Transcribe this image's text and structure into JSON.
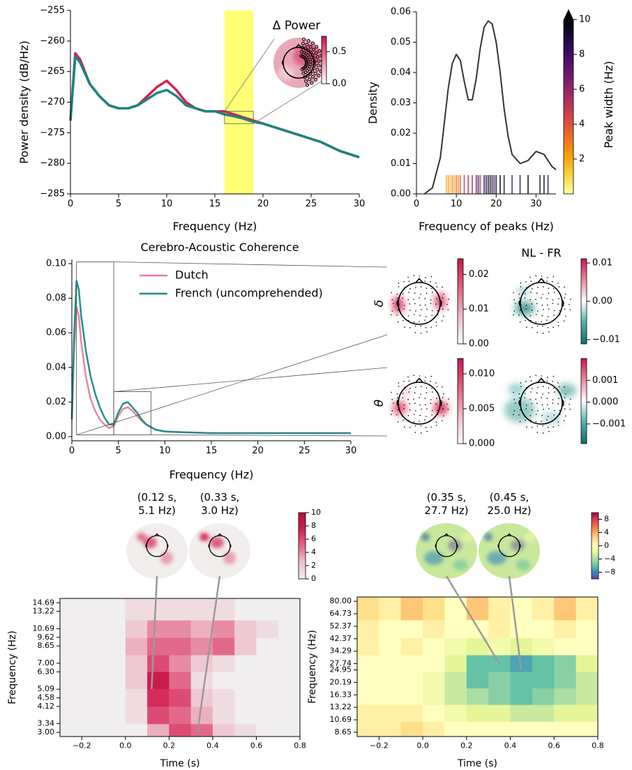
{
  "chart_data": [
    {
      "type": "line",
      "xlabel": "Frequency (Hz)",
      "ylabel": "Power density (dB/Hz)",
      "xlim": [
        0,
        30
      ],
      "ylim": [
        -285,
        -255
      ],
      "xticks": [
        0,
        5,
        10,
        15,
        20,
        25,
        30
      ],
      "yticks": [
        {
          "value": -285,
          "label": "−285"
        },
        {
          "value": -280,
          "label": "−280"
        },
        {
          "value": -275,
          "label": "−275"
        },
        {
          "value": -270,
          "label": "−270"
        },
        {
          "value": -265,
          "label": "−265"
        },
        {
          "value": -260,
          "label": "−260"
        },
        {
          "value": -255,
          "label": "−255"
        }
      ],
      "x": [
        0,
        0.5,
        1,
        2,
        3,
        4,
        5,
        6,
        7,
        8,
        9,
        10,
        11,
        12,
        13,
        14,
        15,
        16,
        17,
        18,
        19,
        20,
        22,
        24,
        26,
        28,
        30
      ],
      "series": [
        {
          "color": "#d6204e",
          "values": [
            -273,
            -262,
            -263,
            -267,
            -269,
            -270.5,
            -271,
            -271,
            -270.5,
            -269,
            -267.5,
            -266.5,
            -268,
            -270,
            -271,
            -271.5,
            -271.5,
            -271.5,
            -272,
            -272.5,
            -273,
            -273.5,
            -274.5,
            -275.5,
            -276.5,
            -278,
            -279
          ]
        },
        {
          "color": "#1a8580",
          "values": [
            -273,
            -262.5,
            -263.5,
            -267,
            -269,
            -270.5,
            -271,
            -271,
            -270.5,
            -269.5,
            -268.5,
            -268,
            -269,
            -270.5,
            -271,
            -271.5,
            -271.5,
            -272,
            -272.3,
            -272.7,
            -273.2,
            -273.5,
            -274.5,
            -275.5,
            -276.5,
            -278,
            -279
          ]
        }
      ],
      "highlight": [
        16,
        19
      ],
      "inset_region": {
        "xlim": [
          16,
          19
        ],
        "ylim": [
          -273.5,
          -271.5
        ]
      },
      "annotation": "Δ Power",
      "inset_colorbar": {
        "lim": [
          0,
          0.74
        ],
        "ticks": [
          {
            "value": 0,
            "label": "0.0"
          },
          0.5
        ]
      }
    },
    {
      "type": "density",
      "xlabel": "Frequency of peaks (Hz)",
      "ylabel": "Density",
      "xlim": [
        0,
        35
      ],
      "ylim": [
        0,
        0.06
      ],
      "xticks": [
        0,
        10,
        20,
        30
      ],
      "yticks": [
        {
          "value": 0,
          "label": "0.00"
        },
        0.01,
        0.02,
        0.03,
        0.04,
        0.05,
        0.06
      ],
      "x": [
        2,
        4,
        6,
        8,
        9,
        10,
        11,
        12,
        13,
        14,
        15,
        16,
        17,
        18,
        19,
        20,
        21,
        22,
        23,
        24,
        26,
        28,
        30,
        32,
        34,
        35
      ],
      "values": [
        0,
        0.002,
        0.012,
        0.035,
        0.043,
        0.046,
        0.044,
        0.037,
        0.031,
        0.031,
        0.038,
        0.048,
        0.055,
        0.057,
        0.056,
        0.05,
        0.04,
        0.028,
        0.019,
        0.013,
        0.01,
        0.011,
        0.014,
        0.013,
        0.009,
        0.008
      ],
      "color": "#333333",
      "rug": {
        "x": [
          7.5,
          8,
          8.5,
          9,
          9.5,
          10,
          10.5,
          11,
          12,
          13,
          14,
          15,
          15.5,
          16,
          17,
          17.5,
          18,
          18.5,
          19,
          19.5,
          20,
          21,
          22,
          24,
          26,
          28,
          31,
          32,
          33
        ],
        "widths": [
          2,
          2.5,
          1.5,
          3,
          2,
          3.5,
          2.5,
          4,
          5,
          6,
          5.5,
          7,
          8,
          6,
          9,
          8.5,
          9.5,
          10,
          9,
          8,
          9.5,
          10,
          9,
          8,
          9,
          10,
          9.5,
          10,
          9
        ]
      },
      "colorbar": {
        "label": "Peak width (Hz)",
        "lim": [
          0,
          10
        ],
        "ticks": [
          2,
          4,
          6,
          8,
          10
        ]
      }
    },
    {
      "type": "line",
      "title": "Cerebro-Acoustic Coherence",
      "xlabel": "Frequency (Hz)",
      "xlim": [
        0,
        30
      ],
      "ylim": [
        0,
        0.1
      ],
      "xticks": [
        0,
        5,
        10,
        15,
        20,
        25,
        30
      ],
      "yticks": [
        {
          "value": 0,
          "label": "0.00"
        },
        0.02,
        0.04,
        0.06,
        0.08,
        {
          "value": 0.1,
          "label": "0.10"
        }
      ],
      "x": [
        0,
        0.25,
        0.5,
        0.75,
        1,
        1.5,
        2,
        2.5,
        3,
        3.5,
        4,
        4.5,
        5,
        5.5,
        6,
        6.5,
        7,
        7.5,
        8,
        9,
        10,
        12,
        15,
        20,
        25,
        30
      ],
      "series": [
        {
          "name": "Dutch",
          "color": "#e8809a",
          "values": [
            0.01,
            0.05,
            0.075,
            0.07,
            0.055,
            0.035,
            0.022,
            0.015,
            0.01,
            0.007,
            0.005,
            0.006,
            0.012,
            0.016,
            0.017,
            0.015,
            0.012,
            0.009,
            0.007,
            0.004,
            0.003,
            0.0025,
            0.002,
            0.002,
            0.002,
            0.002
          ]
        },
        {
          "name": "French (uncomprehended)",
          "color": "#1a8a85",
          "values": [
            0.01,
            0.06,
            0.09,
            0.085,
            0.07,
            0.05,
            0.035,
            0.025,
            0.017,
            0.011,
            0.007,
            0.007,
            0.014,
            0.019,
            0.02,
            0.017,
            0.014,
            0.01,
            0.007,
            0.004,
            0.003,
            0.0025,
            0.002,
            0.002,
            0.002,
            0.002
          ]
        }
      ],
      "zoom_boxes": [
        {
          "xlim": [
            0.5,
            4.5
          ],
          "ylim": [
            0.001,
            0.101
          ]
        },
        {
          "xlim": [
            4.5,
            8.5
          ],
          "ylim": [
            0.001,
            0.026
          ]
        }
      ]
    },
    {
      "type": "topomap",
      "title": "NL - FR",
      "rows": [
        "δ",
        "θ"
      ],
      "colorbars": [
        {
          "lim": [
            0,
            0.0245
          ],
          "ticks": [
            {
              "value": 0,
              "label": "0.00"
            },
            0.01,
            0.02
          ]
        },
        {
          "lim": [
            -0.0111,
            0.0111
          ],
          "ticks": [
            {
              "value": -0.01,
              "label": "−0.01"
            },
            {
              "value": 0,
              "label": "0.00"
            },
            0.01
          ]
        },
        {
          "lim": [
            0,
            0.0122
          ],
          "ticks": [
            {
              "value": 0,
              "label": "0.000"
            },
            0.005,
            {
              "value": 0.01,
              "label": "0.010"
            }
          ]
        },
        {
          "lim": [
            -0.0019,
            0.002
          ],
          "ticks": [
            {
              "value": -0.001,
              "label": "−0.001"
            },
            {
              "value": 0,
              "label": "0.000"
            },
            0.001
          ]
        }
      ]
    },
    {
      "type": "heatmap",
      "xlabel": "Time (s)",
      "ylabel": "Frequency (Hz)",
      "log_y": true,
      "xlim": [
        -0.3,
        0.8
      ],
      "ylim": [
        2.85,
        15.5
      ],
      "xticks": [
        {
          "value": -0.2,
          "label": "−0.2"
        },
        {
          "value": 0,
          "label": "0.0"
        },
        0.2,
        0.4,
        0.6,
        0.8
      ],
      "yticks": [
        {
          "value": 3,
          "label": "3.00"
        },
        3.34,
        4.12,
        4.58,
        5.09,
        {
          "value": 6.3,
          "label": "6.30"
        },
        {
          "value": 7,
          "label": "7.00"
        },
        8.65,
        9.62,
        10.69,
        13.22,
        14.69
      ],
      "times": [
        -0.25,
        -0.15,
        -0.05,
        0.05,
        0.15,
        0.25,
        0.35,
        0.45,
        0.55,
        0.65,
        0.75
      ],
      "freqs": [
        3.0,
        3.7,
        4.6,
        5.7,
        7.0,
        8.6,
        10.7,
        13.2
      ],
      "z": [
        [
          0,
          0,
          0,
          0,
          3,
          6,
          5,
          2,
          1,
          0,
          0
        ],
        [
          0,
          0,
          0,
          1,
          6,
          5,
          3,
          1,
          0,
          0,
          0
        ],
        [
          0,
          0,
          0,
          1,
          7,
          6,
          2,
          1,
          0,
          0,
          0
        ],
        [
          0,
          0,
          0,
          2,
          8,
          5,
          1,
          0,
          0,
          0,
          0
        ],
        [
          0,
          0,
          0,
          2,
          6,
          4,
          2,
          1,
          0,
          0,
          0
        ],
        [
          0,
          0,
          0,
          3,
          5,
          5,
          4,
          5,
          2,
          0,
          0
        ],
        [
          0,
          0,
          0,
          2,
          4,
          4,
          3,
          4,
          2,
          1,
          0
        ],
        [
          0,
          0,
          0,
          1,
          1,
          1,
          1,
          1,
          0,
          0,
          0
        ]
      ],
      "colorbar": {
        "lim": [
          0,
          10
        ],
        "ticks": [
          0,
          2,
          4,
          6,
          8,
          10
        ]
      },
      "annotations": [
        {
          "text": [
            "(0.12 s,",
            "5.1 Hz)"
          ],
          "x": 0.12,
          "y": 5.1
        },
        {
          "text": [
            "(0.33 s,",
            "3.0 Hz)"
          ],
          "x": 0.33,
          "y": 3.0
        }
      ]
    },
    {
      "type": "heatmap",
      "xlabel": "Time (s)",
      "ylabel": "Frequency (Hz)",
      "log_y": true,
      "xlim": [
        -0.3,
        0.8
      ],
      "ylim": [
        8.05,
        86
      ],
      "xticks": [
        {
          "value": -0.2,
          "label": "−0.2"
        },
        {
          "value": 0,
          "label": "0.0"
        },
        0.2,
        0.4,
        0.6,
        0.8
      ],
      "yticks": [
        8.65,
        10.69,
        13.22,
        16.33,
        20.19,
        24.95,
        27.74,
        34.29,
        42.37,
        52.37,
        64.73,
        {
          "value": 80,
          "label": "80.00"
        }
      ],
      "times": [
        -0.25,
        -0.15,
        -0.05,
        0.05,
        0.15,
        0.25,
        0.35,
        0.45,
        0.55,
        0.65,
        0.75
      ],
      "freqs": [
        9,
        12,
        16,
        21,
        28,
        37,
        50,
        68
      ],
      "z": [
        [
          1,
          1,
          2,
          1,
          0,
          0,
          0,
          0,
          0,
          0,
          0
        ],
        [
          1,
          1,
          1,
          0,
          -1,
          -2,
          -2,
          -3,
          -3,
          -2,
          -2
        ],
        [
          0,
          0,
          0,
          -1,
          -3,
          -4,
          -5,
          -6,
          -5,
          -4,
          -3
        ],
        [
          0,
          0,
          0,
          -1,
          -3,
          -6,
          -5,
          -6,
          -6,
          -5,
          -3
        ],
        [
          0,
          0,
          0,
          0,
          -2,
          -6,
          -6,
          -7,
          -6,
          -5,
          -2
        ],
        [
          1,
          0,
          1,
          0,
          -1,
          -2,
          -1,
          -2,
          -1,
          0,
          0
        ],
        [
          1,
          0,
          0,
          1,
          0,
          0,
          1,
          0,
          0,
          1,
          0
        ],
        [
          2,
          1,
          3,
          2,
          0,
          3,
          1,
          0,
          1,
          3,
          1
        ]
      ],
      "colorbar": {
        "lim": [
          -10,
          10
        ],
        "ticks": [
          {
            "value": -8,
            "label": "−8"
          },
          {
            "value": -4,
            "label": "−4"
          },
          0,
          4,
          8
        ]
      },
      "annotations": [
        {
          "text": [
            "(0.35 s,",
            "27.7 Hz)"
          ],
          "x": 0.35,
          "y": 27.7
        },
        {
          "text": [
            "(0.45 s,",
            "25.0 Hz)"
          ],
          "x": 0.45,
          "y": 25.0
        }
      ]
    }
  ]
}
